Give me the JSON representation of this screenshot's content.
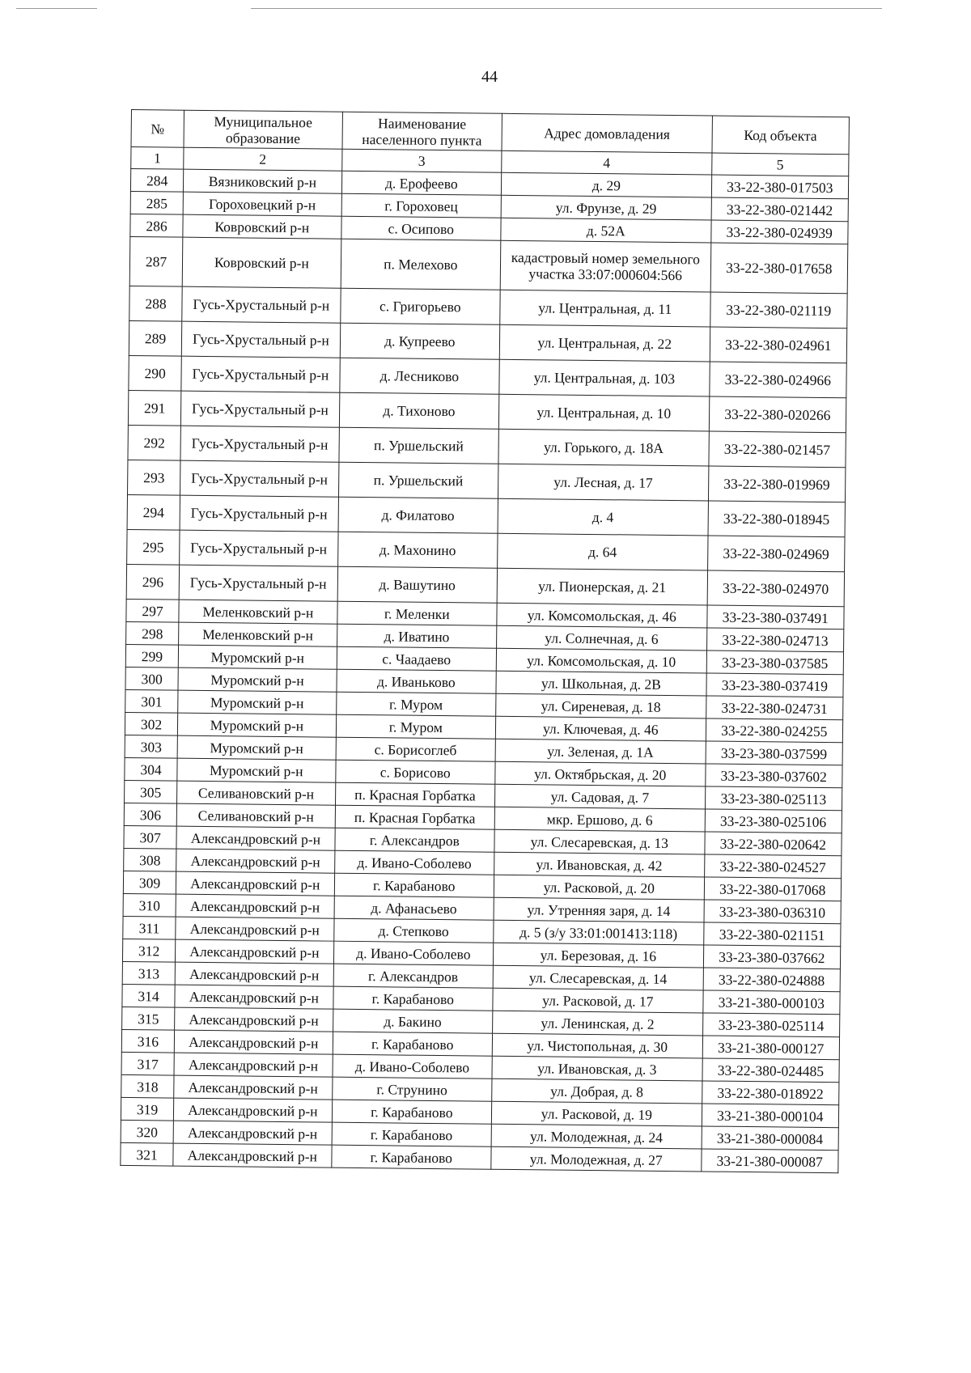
{
  "page_number": "44",
  "table": {
    "headers": [
      "№",
      "Муниципальное образование",
      "Наименование населенного пункта",
      "Адрес домовладения",
      "Код объекта"
    ],
    "column_numbers": [
      "1",
      "2",
      "3",
      "4",
      "5"
    ],
    "rows": [
      [
        "284",
        "Вязниковский р-н",
        "д. Ерофеево",
        "д. 29",
        "33-22-380-017503"
      ],
      [
        "285",
        "Гороховецкий р-н",
        "г. Гороховец",
        "ул. Фрунзе, д. 29",
        "33-22-380-021442"
      ],
      [
        "286",
        "Ковровский р-н",
        "с. Осипово",
        "д. 52А",
        "33-22-380-024939"
      ],
      [
        "287",
        "Ковровский р-н",
        "п. Мелехово",
        "кадастровый номер земельного участка 33:07:000604:566",
        "33-22-380-017658"
      ],
      [
        "288",
        "Гусь-Хрустальный р-н",
        "с. Григорьево",
        "ул. Центральная, д. 11",
        "33-22-380-021119"
      ],
      [
        "289",
        "Гусь-Хрустальный р-н",
        "д. Купреево",
        "ул. Центральная, д. 22",
        "33-22-380-024961"
      ],
      [
        "290",
        "Гусь-Хрустальный р-н",
        "д. Лесниково",
        "ул. Центральная, д. 103",
        "33-22-380-024966"
      ],
      [
        "291",
        "Гусь-Хрустальный р-н",
        "д. Тихоново",
        "ул. Центральная, д. 10",
        "33-22-380-020266"
      ],
      [
        "292",
        "Гусь-Хрустальный р-н",
        "п. Уршельский",
        "ул. Горького, д. 18А",
        "33-22-380-021457"
      ],
      [
        "293",
        "Гусь-Хрустальный р-н",
        "п. Уршельский",
        "ул. Лесная, д. 17",
        "33-22-380-019969"
      ],
      [
        "294",
        "Гусь-Хрустальный р-н",
        "д. Филатово",
        "д. 4",
        "33-22-380-018945"
      ],
      [
        "295",
        "Гусь-Хрустальный р-н",
        "д. Махонино",
        "д. 64",
        "33-22-380-024969"
      ],
      [
        "296",
        "Гусь-Хрустальный р-н",
        "д. Вашутино",
        "ул. Пионерская, д. 21",
        "33-22-380-024970"
      ],
      [
        "297",
        "Меленковский р-н",
        "г. Меленки",
        "ул. Комсомольская, д. 46",
        "33-23-380-037491"
      ],
      [
        "298",
        "Меленковский р-н",
        "д. Иватино",
        "ул. Солнечная, д. 6",
        "33-22-380-024713"
      ],
      [
        "299",
        "Муромский р-н",
        "с. Чаадаево",
        "ул. Комсомольская, д. 10",
        "33-23-380-037585"
      ],
      [
        "300",
        "Муромский р-н",
        "д. Иваньково",
        "ул. Школьная, д. 2В",
        "33-23-380-037419"
      ],
      [
        "301",
        "Муромский р-н",
        "г. Муром",
        "ул. Сиреневая, д. 18",
        "33-22-380-024731"
      ],
      [
        "302",
        "Муромский р-н",
        "г. Муром",
        "ул. Ключевая, д. 46",
        "33-22-380-024255"
      ],
      [
        "303",
        "Муромский р-н",
        "с. Борисоглеб",
        "ул. Зеленая, д. 1А",
        "33-23-380-037599"
      ],
      [
        "304",
        "Муромский р-н",
        "с. Борисово",
        "ул. Октябрьская, д. 20",
        "33-23-380-037602"
      ],
      [
        "305",
        "Селивановский р-н",
        "п. Красная Горбатка",
        "ул. Садовая, д. 7",
        "33-23-380-025113"
      ],
      [
        "306",
        "Селивановский р-н",
        "п. Красная Горбатка",
        "мкр. Ершово, д. 6",
        "33-23-380-025106"
      ],
      [
        "307",
        "Александровский р-н",
        "г. Александров",
        "ул. Слесаревская, д. 13",
        "33-22-380-020642"
      ],
      [
        "308",
        "Александровский р-н",
        "д. Ивано-Соболево",
        "ул. Ивановская, д. 42",
        "33-22-380-024527"
      ],
      [
        "309",
        "Александровский р-н",
        "г. Карабаново",
        "ул. Расковой, д. 20",
        "33-22-380-017068"
      ],
      [
        "310",
        "Александровский р-н",
        "д. Афанасьево",
        "ул. Утренняя заря, д. 14",
        "33-23-380-036310"
      ],
      [
        "311",
        "Александровский р-н",
        "д. Степково",
        "д. 5 (з/у 33:01:001413:118)",
        "33-22-380-021151"
      ],
      [
        "312",
        "Александровский р-н",
        "д. Ивано-Соболево",
        "ул. Березовая, д. 16",
        "33-23-380-037662"
      ],
      [
        "313",
        "Александровский р-н",
        "г. Александров",
        "ул. Слесаревская, д. 14",
        "33-22-380-024888"
      ],
      [
        "314",
        "Александровский р-н",
        "г. Карабаново",
        "ул. Расковой, д. 17",
        "33-21-380-000103"
      ],
      [
        "315",
        "Александровский р-н",
        "д. Бакино",
        "ул. Ленинская, д. 2",
        "33-23-380-025114"
      ],
      [
        "316",
        "Александровский р-н",
        "г. Карабаново",
        "ул. Чистопольная, д. 30",
        "33-21-380-000127"
      ],
      [
        "317",
        "Александровский р-н",
        "д. Ивано-Соболево",
        "ул. Ивановская, д. 3",
        "33-22-380-024485"
      ],
      [
        "318",
        "Александровский р-н",
        "г. Струнино",
        "ул. Добрая, д. 8",
        "33-22-380-018922"
      ],
      [
        "319",
        "Александровский р-н",
        "г. Карабаново",
        "ул. Расковой, д. 19",
        "33-21-380-000104"
      ],
      [
        "320",
        "Александровский р-н",
        "г. Карабаново",
        "ул. Молодежная, д. 24",
        "33-21-380-000084"
      ],
      [
        "321",
        "Александровский р-н",
        "г. Карабаново",
        "ул. Молодежная, д. 27",
        "33-21-380-000087"
      ]
    ]
  }
}
